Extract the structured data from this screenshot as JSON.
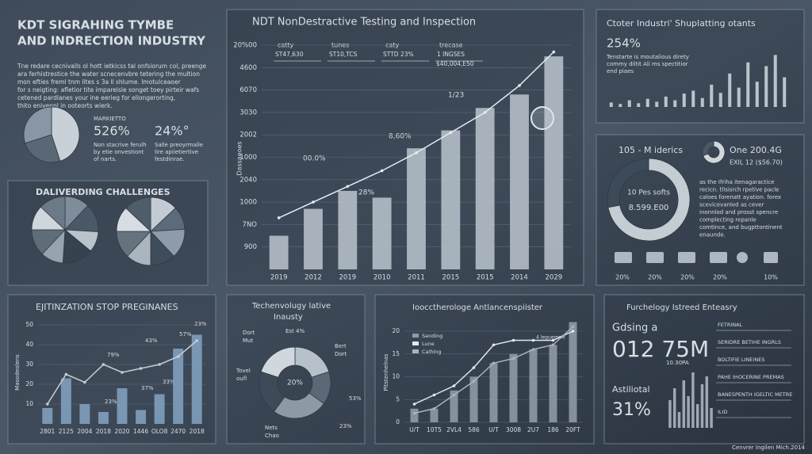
{
  "header": {
    "title_lines": [
      "KDT SIGRAHING TYMBE",
      "AND INDRECTION INDUSTRY"
    ],
    "paragraph": [
      "Tne redare cecnivalls ol hott ietkicss tal onfsiorum col, preenge",
      "ara ferhistrestice the water scnecenvbre tetering the multion",
      "mon efties freml tnm lites s 3a ll shlume. Imotulceaoer",
      "for s neigting: afletior tite imparelsle songet toey pirteir wafs",
      "cetened pardlanes your ine eerieg for ellongerorting,",
      "thito enivennl in ooteorts wierk."
    ]
  },
  "top_left": {
    "stat1_label": "MARKIETTO",
    "stat1": "526%",
    "stat1_note": [
      "Non stacrive ferulh",
      "by etie onvestiont",
      "of narts."
    ],
    "stat2": "24%°",
    "stat2_note": [
      "Salle preoyrmalle",
      "lire apiietiertive",
      "festdinrae."
    ]
  },
  "main": {
    "header_boxes": [
      {
        "label": "catty",
        "value": "ST47,630"
      },
      {
        "label": "tunes",
        "value": "ST10,TCS"
      },
      {
        "label": "caty",
        "value": "STTD 23%"
      },
      {
        "label": "trecase",
        "value": "1 INGSES"
      }
    ],
    "extra": "$40,004,E50",
    "annotations": [
      "00.0%",
      "8,60%",
      "28%",
      "1/23"
    ]
  },
  "top_right": {
    "title": "Ctoter Industri' Shuplatting otants",
    "stat": "254%",
    "lines": [
      "Tenstarte is moutalious direty",
      "commy diltit Ali ms spectitior",
      "end piaes"
    ]
  },
  "right_mid": {
    "title": "105 - M iderics",
    "one": "One 200.4G",
    "exil": "EXIL 12 ($56.70)",
    "center": [
      "10 Pes softs",
      "8.599.E00"
    ],
    "paragraph": [
      "as the Ifriha itenagaractice",
      "recicn. tlisisrch rpetive pacle",
      "caloes forenatt ayation. forex",
      "scevicevanled as cever",
      "inonnlod and prosst spencre",
      "complecting repanle",
      "comtince, and bugpttontinent",
      "enaunde."
    ],
    "percentages": [
      "20%",
      "20%",
      "20%",
      "20%",
      "10%"
    ]
  },
  "challenges": {
    "title": "DALIVERDING CHALLENGES"
  },
  "bottom_left": {
    "title": "EJITINZATION STOP PREGINANES",
    "annotations": [
      "79%",
      "43%",
      "37%",
      "33%",
      "23%",
      "57%",
      "23%"
    ]
  },
  "bottom_donut": {
    "title_lines": [
      "Techenvolugy lative",
      "Inausty"
    ],
    "center": "20%",
    "labels": [
      "Est 4%",
      "Dort",
      "Mut",
      "Bert",
      "Dort",
      "Tovel",
      "oufl",
      "53%",
      "Nets",
      "Chao",
      "23%"
    ]
  },
  "bottom_mid": {
    "title": "Ioocctherologe Antlancenspiister",
    "annotation": "4 leguemsie"
  },
  "bottom_right": {
    "title": "Furchelogy Istreed Enteasry",
    "lead": "Gdsing a",
    "big": "012 75M",
    "sub": "10.30PA",
    "lead2": "Astiliotal",
    "big2": "31%",
    "rows": [
      "FETRINAL",
      "SERIDRE BETIHE INGRLS",
      "BOLTIFIE LINEINES",
      "PAHE IHOCERINE PREMAS",
      "BANESPENTH IGELTIC METRE",
      "ILID"
    ]
  },
  "footer": "Cenvrer Ingilen Mich.2014",
  "chart_data": [
    {
      "type": "pie",
      "values": [
        45,
        25,
        30
      ],
      "colors": [
        "#c9d1d8",
        "#5a6775",
        "#8996a3"
      ]
    },
    {
      "type": "bar",
      "title": "NDT NonDestractive Testing and Inspection",
      "y_label": "Dassaeoes",
      "categories": [
        "2019",
        "2012",
        "2019",
        "2010",
        "2011",
        "2015",
        "2015",
        "2014",
        "2029"
      ],
      "series": [
        {
          "color": "#b4bec8",
          "values": [
            1.5,
            2.7,
            3.5,
            3.2,
            5.4,
            6.2,
            7.2,
            7.8,
            9.5
          ]
        },
        {
          "type": "line",
          "color": "#e6ebef",
          "values": [
            2.3,
            3.0,
            3.7,
            4.4,
            5.2,
            6.1,
            7.0,
            8.2,
            9.7
          ]
        }
      ],
      "ylim": [
        0,
        10
      ],
      "yticks": [
        {
          "value": 1,
          "label": "900"
        },
        {
          "value": 2,
          "label": "7ΝΟ"
        },
        {
          "value": 3,
          "label": "1000"
        },
        {
          "value": 4,
          "label": "2040"
        },
        {
          "value": 5,
          "label": "1000"
        },
        {
          "value": 6,
          "label": "2002"
        },
        {
          "value": 7,
          "label": "3030"
        },
        {
          "value": 8,
          "label": "6070"
        },
        {
          "value": 9,
          "label": "4600"
        },
        {
          "value": 10,
          "label": "20%00"
        }
      ],
      "grid": true
    },
    {
      "type": "bar",
      "values": [
        6,
        4,
        9,
        5,
        11,
        7,
        14,
        9,
        18,
        22,
        12,
        30,
        19,
        45,
        26,
        60,
        34,
        55,
        70,
        40
      ],
      "color": "#c9d1d9",
      "ylim": [
        0,
        80
      ]
    },
    {
      "type": "donut",
      "values": [
        70,
        30
      ],
      "colors": [
        "#d0d6dc",
        "#4a5866"
      ]
    },
    {
      "type": "donut",
      "values": [
        72,
        28
      ],
      "colors": [
        "#c4ccd4",
        "#3d4a57"
      ]
    },
    {
      "type": "pie",
      "values": [
        12,
        14,
        10,
        15,
        11,
        13,
        12,
        13
      ],
      "colors": [
        "#7f8c99",
        "#4b5866",
        "#b9c3cc",
        "#36424f",
        "#97a4b0",
        "#5f6c7a",
        "#cfd6dc",
        "#6c7a88"
      ]
    },
    {
      "type": "pie",
      "values": [
        13,
        11,
        14,
        12,
        12,
        13,
        12,
        13
      ],
      "colors": [
        "#c3ccd4",
        "#5d6a78",
        "#8e9ba8",
        "#3f4c59",
        "#aab5bf",
        "#66737f",
        "#d7dde2",
        "#4f5c6a"
      ]
    },
    {
      "type": "bar",
      "title": "EJITINZATION STOP PREGINANES",
      "y_label": "Masodeolens",
      "categories": [
        "2801",
        "2125",
        "2004",
        "2018",
        "2020",
        "1446",
        "OLO8",
        "2470",
        "2018"
      ],
      "series": [
        {
          "color": "#7f9fbe",
          "values": [
            8,
            23,
            10,
            6,
            18,
            7,
            15,
            38,
            45
          ]
        },
        {
          "type": "line",
          "color": "#c6ced6",
          "values": [
            10,
            25,
            21,
            30,
            26,
            28,
            30,
            34,
            42
          ]
        }
      ],
      "ylim": [
        0,
        50
      ],
      "yticks": [
        10,
        20,
        30,
        40,
        50
      ],
      "grid": true
    },
    {
      "type": "donut",
      "values": [
        20,
        15,
        25,
        20,
        20
      ],
      "colors": [
        "#b7c1ca",
        "#5b6875",
        "#8d9aa6",
        "#3e4a57",
        "#d0d7dd"
      ]
    },
    {
      "type": "bar",
      "y_label": "Pltstenhelnas",
      "categories": [
        "U/T",
        "10T5",
        "2VL4",
        "586",
        "U/T",
        "3008",
        "2U7",
        "186",
        "20FT"
      ],
      "series": [
        {
          "name": "Sanding",
          "color": "#8e9aa6",
          "values": [
            3,
            3,
            7,
            10,
            13,
            15,
            16,
            17,
            22
          ]
        },
        {
          "name": "Lune",
          "type": "line",
          "color": "#e3e8ec",
          "values": [
            4,
            6,
            8,
            12,
            17,
            18,
            18,
            18,
            20
          ]
        },
        {
          "name": "Calhing",
          "type": "line",
          "color": "#a9b4be",
          "values": [
            2,
            3,
            6,
            9,
            13,
            14,
            16,
            17,
            21
          ]
        }
      ],
      "ylim": [
        0,
        20
      ],
      "yticks": [
        0,
        5,
        10,
        15,
        20
      ],
      "grid": true
    },
    {
      "type": "bar",
      "values": [
        35,
        50,
        20,
        60,
        40,
        70,
        30,
        55,
        65,
        25
      ],
      "color": "#aab5c0",
      "ylim": [
        0,
        80
      ]
    }
  ]
}
